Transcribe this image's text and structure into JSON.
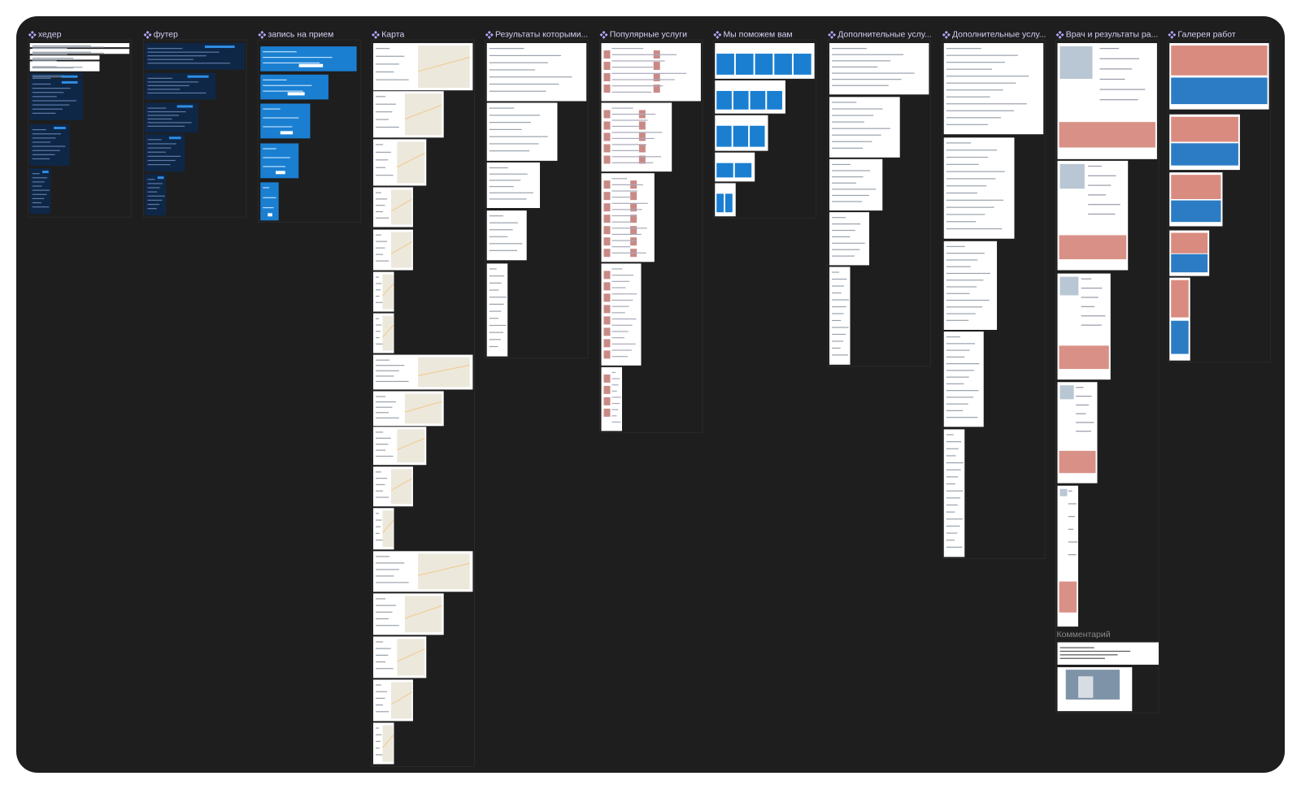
{
  "sections": [
    {
      "label": "хедер"
    },
    {
      "label": "футер"
    },
    {
      "label": "запись на прием"
    },
    {
      "label": "Карта"
    },
    {
      "label": "Результаты которыми..."
    },
    {
      "label": "Популярные услуги"
    },
    {
      "label": "Мы поможем вам"
    },
    {
      "label": "Дополнительные услу..."
    },
    {
      "label": "Дополнительные услу..."
    },
    {
      "label": "Врач и результаты ра..."
    },
    {
      "label": "Галерея работ"
    }
  ],
  "comment": {
    "label": "Комментарий"
  }
}
